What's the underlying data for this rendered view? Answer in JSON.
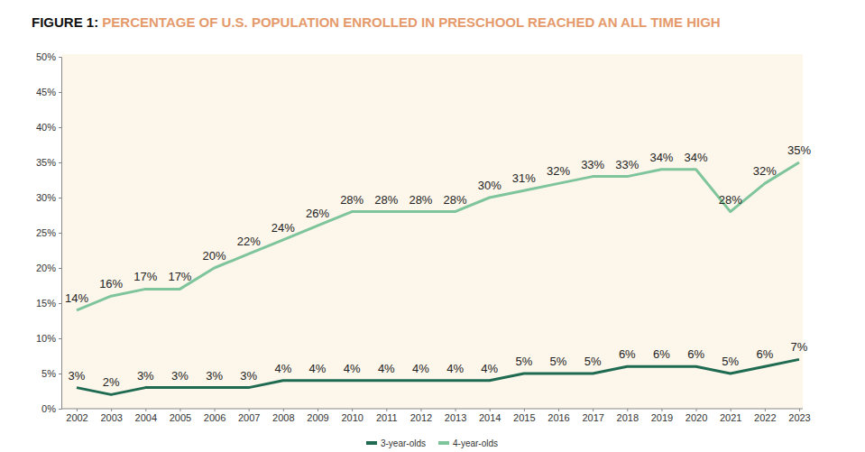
{
  "chart_data": {
    "type": "line",
    "title": "FIGURE 1: PERCENTAGE OF U.S. POPULATION ENROLLED IN PRESCHOOL REACHED AN ALL TIME HIGH",
    "categories": [
      "2002",
      "2003",
      "2004",
      "2005",
      "2006",
      "2007",
      "2008",
      "2009",
      "2010",
      "2011",
      "2012",
      "2013",
      "2014",
      "2015",
      "2016",
      "2017",
      "2018",
      "2019",
      "2020",
      "2021",
      "2022",
      "2023"
    ],
    "series": [
      {
        "name": "3-year-olds",
        "color": "#1f6b52",
        "values": [
          3,
          2,
          3,
          3,
          3,
          3,
          4,
          4,
          4,
          4,
          4,
          4,
          4,
          5,
          5,
          5,
          6,
          6,
          6,
          5,
          6,
          7
        ],
        "value_labels": [
          "3%",
          "2%",
          "3%",
          "3%",
          "3%",
          "3%",
          "4%",
          "4%",
          "4%",
          "4%",
          "4%",
          "4%",
          "4%",
          "5%",
          "5%",
          "5%",
          "6%",
          "6%",
          "6%",
          "5%",
          "6%",
          "7%"
        ]
      },
      {
        "name": "4-year-olds",
        "color": "#7fc59c",
        "values": [
          14,
          16,
          17,
          17,
          20,
          22,
          24,
          26,
          28,
          28,
          28,
          28,
          30,
          31,
          32,
          33,
          33,
          34,
          34,
          28,
          32,
          35
        ],
        "value_labels": [
          "14%",
          "16%",
          "17%",
          "17%",
          "20%",
          "22%",
          "24%",
          "26%",
          "28%",
          "28%",
          "28%",
          "28%",
          "30%",
          "31%",
          "32%",
          "33%",
          "33%",
          "34%",
          "34%",
          "28%",
          "32%",
          "35%"
        ]
      }
    ],
    "ylim": [
      0,
      50
    ],
    "yticks": [
      {
        "value": 0,
        "label": "0%"
      },
      {
        "value": 5,
        "label": "5%"
      },
      {
        "value": 10,
        "label": "10%"
      },
      {
        "value": 15,
        "label": "15%"
      },
      {
        "value": 20,
        "label": "20%"
      },
      {
        "value": 25,
        "label": "25%"
      },
      {
        "value": 30,
        "label": "30%"
      },
      {
        "value": 35,
        "label": "35%"
      },
      {
        "value": 40,
        "label": "40%"
      },
      {
        "value": 45,
        "label": "45%"
      },
      {
        "value": 50,
        "label": "50%"
      }
    ],
    "grid": false,
    "data_labels": true,
    "legend": "bottom"
  }
}
